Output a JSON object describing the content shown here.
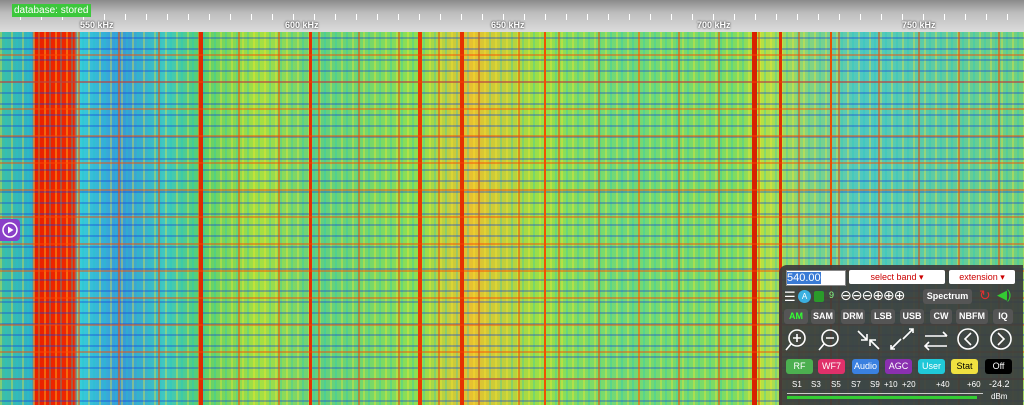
{
  "header": {
    "status": "database: stored"
  },
  "scale": {
    "labels": [
      "550 kHz",
      "600 kHz",
      "650 kHz",
      "700 kHz",
      "750 kHz"
    ]
  },
  "panel": {
    "frequency": "540.00",
    "band_select": "select band",
    "extension_select": "extension",
    "agc_badge": "A",
    "step_badge": "9",
    "spectrum_button": "Spectrum",
    "modes": [
      "AM",
      "SAM",
      "DRM",
      "LSB",
      "USB",
      "CW",
      "NBFM",
      "IQ"
    ],
    "buttons": [
      "RF",
      "WF7",
      "Audio",
      "AGC",
      "User",
      "Stat",
      "Off"
    ],
    "smeter": {
      "labels": [
        "S1",
        "S3",
        "S5",
        "S7",
        "S9",
        "+10",
        "+20",
        "+40",
        "+60"
      ],
      "reading": "-24.2",
      "unit": "dBm"
    }
  }
}
